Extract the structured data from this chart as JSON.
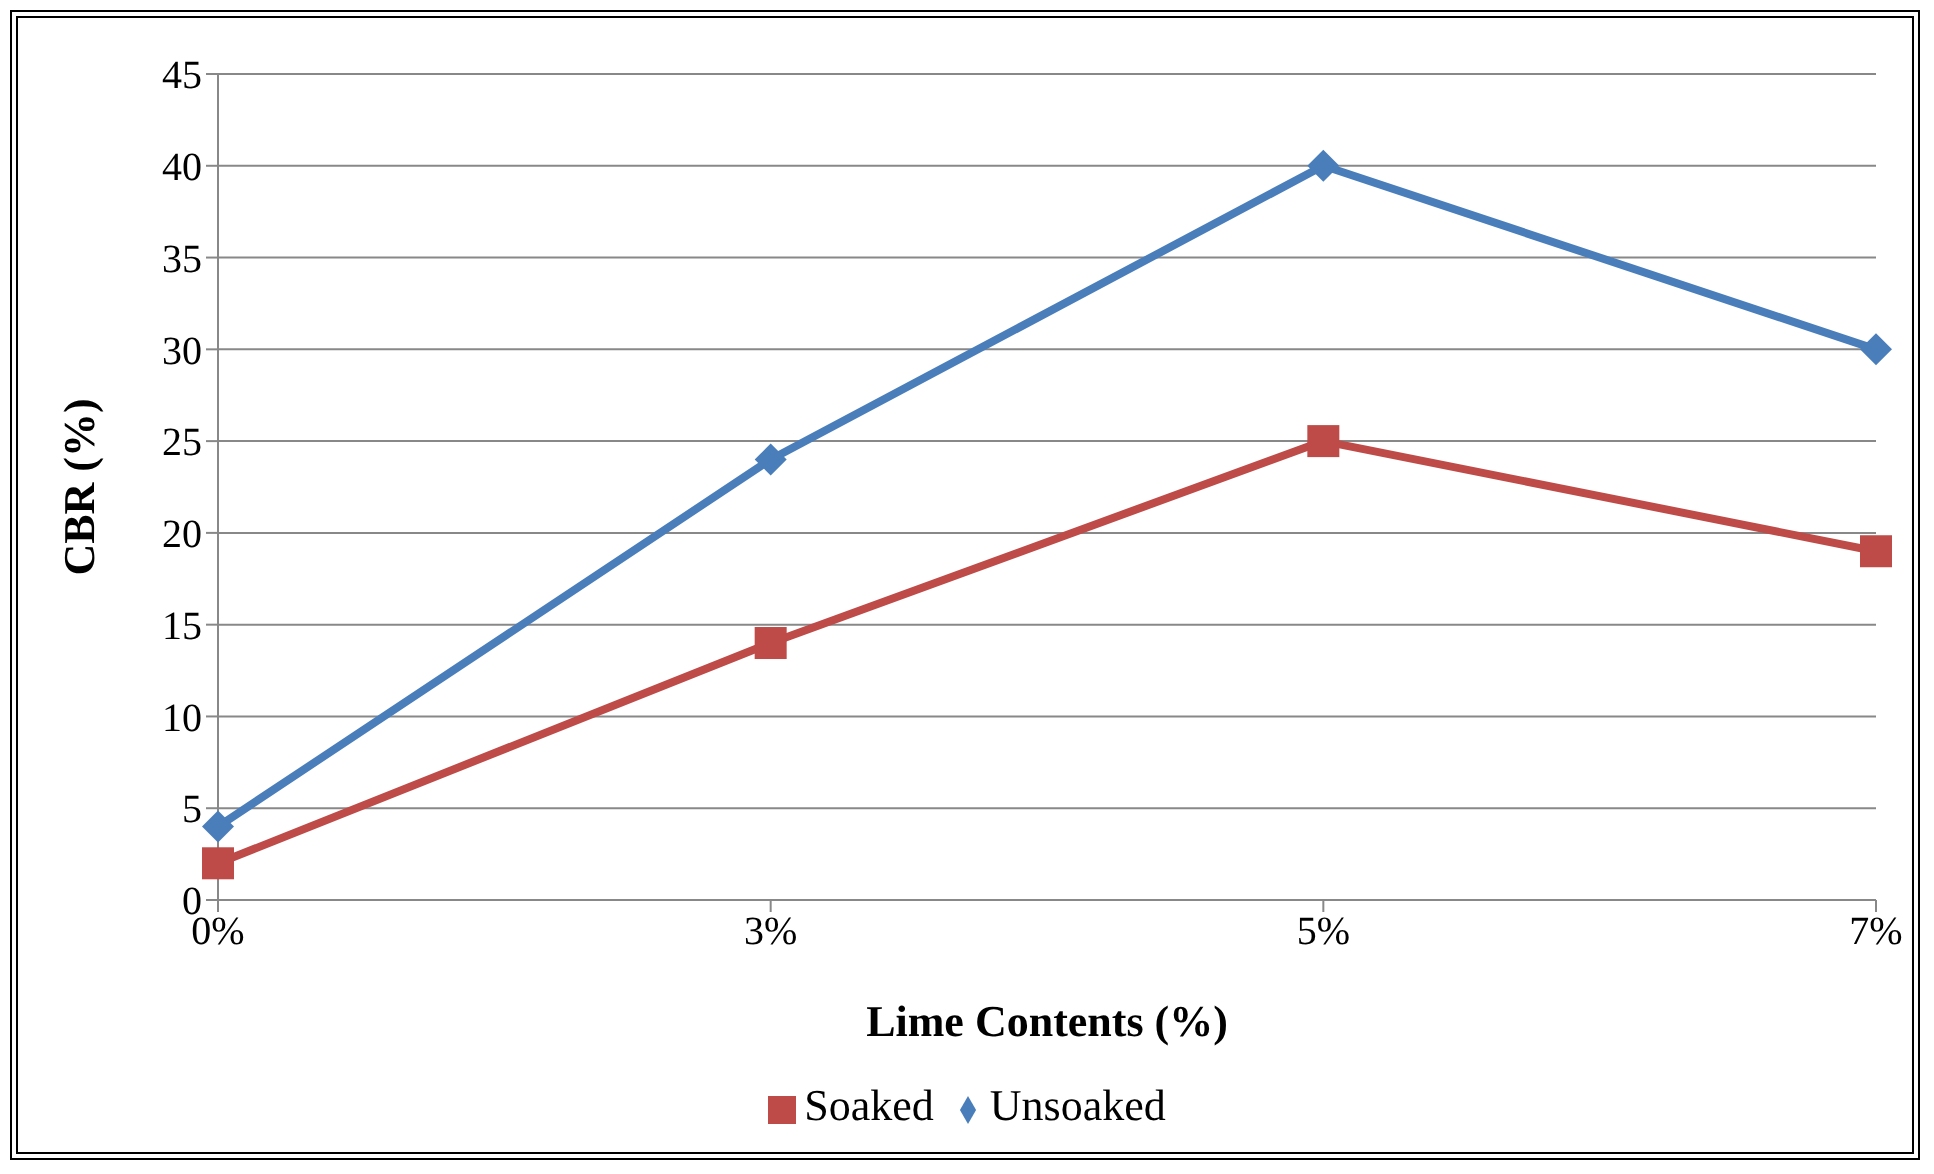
{
  "chart_data": {
    "type": "line",
    "xlabel": "Lime Contents (%)",
    "ylabel": "CBR (%)",
    "categories": [
      "0%",
      "3%",
      "5%",
      "7%"
    ],
    "series": [
      {
        "name": "Unsoaked",
        "color": "#4a7ebb",
        "values": [
          4,
          24,
          40,
          30
        ],
        "marker": "diamond"
      },
      {
        "name": "Soaked",
        "color": "#be4b48",
        "values": [
          2,
          14,
          25,
          19
        ],
        "marker": "square"
      }
    ],
    "ylim": [
      0,
      45
    ],
    "yticks": [
      0,
      5,
      10,
      15,
      20,
      25,
      30,
      35,
      40,
      45
    ],
    "grid": "y",
    "legend": "bottom",
    "line_style": "solid"
  }
}
